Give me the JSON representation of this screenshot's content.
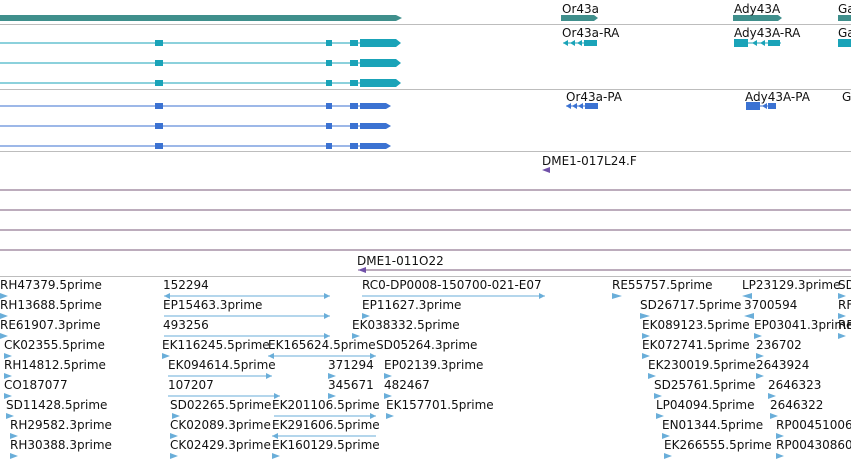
{
  "colors": {
    "gene_track": "#3f8f8c",
    "transcript": "#1aa3b8",
    "protein": "#3b72d2",
    "bac_clone": "#7050a8",
    "est": "#6aaed9",
    "separator": "#bdbdbd",
    "bac_line": "#7a5a7a"
  },
  "genes": [
    {
      "name": "Or43a",
      "symbol": "Or43a"
    },
    {
      "name": "Ady43A",
      "symbol": "Ady43A"
    },
    {
      "name": "Ga",
      "symbol": "Ga"
    }
  ],
  "transcripts": [
    {
      "name": "Or43a-RA"
    },
    {
      "name": "Ady43A-RA"
    },
    {
      "name": "Ga"
    }
  ],
  "proteins": [
    {
      "name": "Or43a-PA"
    },
    {
      "name": "Ady43A-PA"
    },
    {
      "name": "G"
    }
  ],
  "bac_clones": [
    {
      "name": "DME1-017L24.F"
    },
    {
      "name": "DME1-011O22"
    }
  ],
  "est_labels": [
    "RH47379.5prime",
    "152294",
    "RC0-DP0008-150700-021-E07",
    "RE55757.5prime",
    "LP23129.3prime",
    "SD",
    "RH13688.5prime",
    "EP15463.3prime",
    "EP11627.3prime",
    "SD26717.5prime",
    "3700594",
    "RF",
    "RE61907.3prime",
    "493256",
    "EK038332.5prime",
    "EK089123.5prime",
    "EP03041.3prime",
    "RF",
    "CK02355.5prime",
    "EK116245.5prime",
    "EK165624.5prime",
    "SD05264.3prime",
    "EK072741.5prime",
    "236702",
    "RH14812.5prime",
    "EK094614.5prime",
    "371294",
    "EP02139.3prime",
    "EK230019.5prime",
    "2643924",
    "CO187077",
    "107207",
    "345671",
    "482467",
    "SD25761.5prime",
    "2646323",
    "SD11428.5prime",
    "SD02265.5prime",
    "EK201106.5prime",
    "EK157701.5prime",
    "LP04094.5prime",
    "2646322",
    "RH29582.3prime",
    "CK02089.3prime",
    "EK291606.5prime",
    "EN01344.5prime",
    "RP00451006",
    "RH30388.3prime",
    "CK02429.3prime",
    "EK160129.5prime",
    "EK266555.5prime",
    "RP00430860"
  ]
}
